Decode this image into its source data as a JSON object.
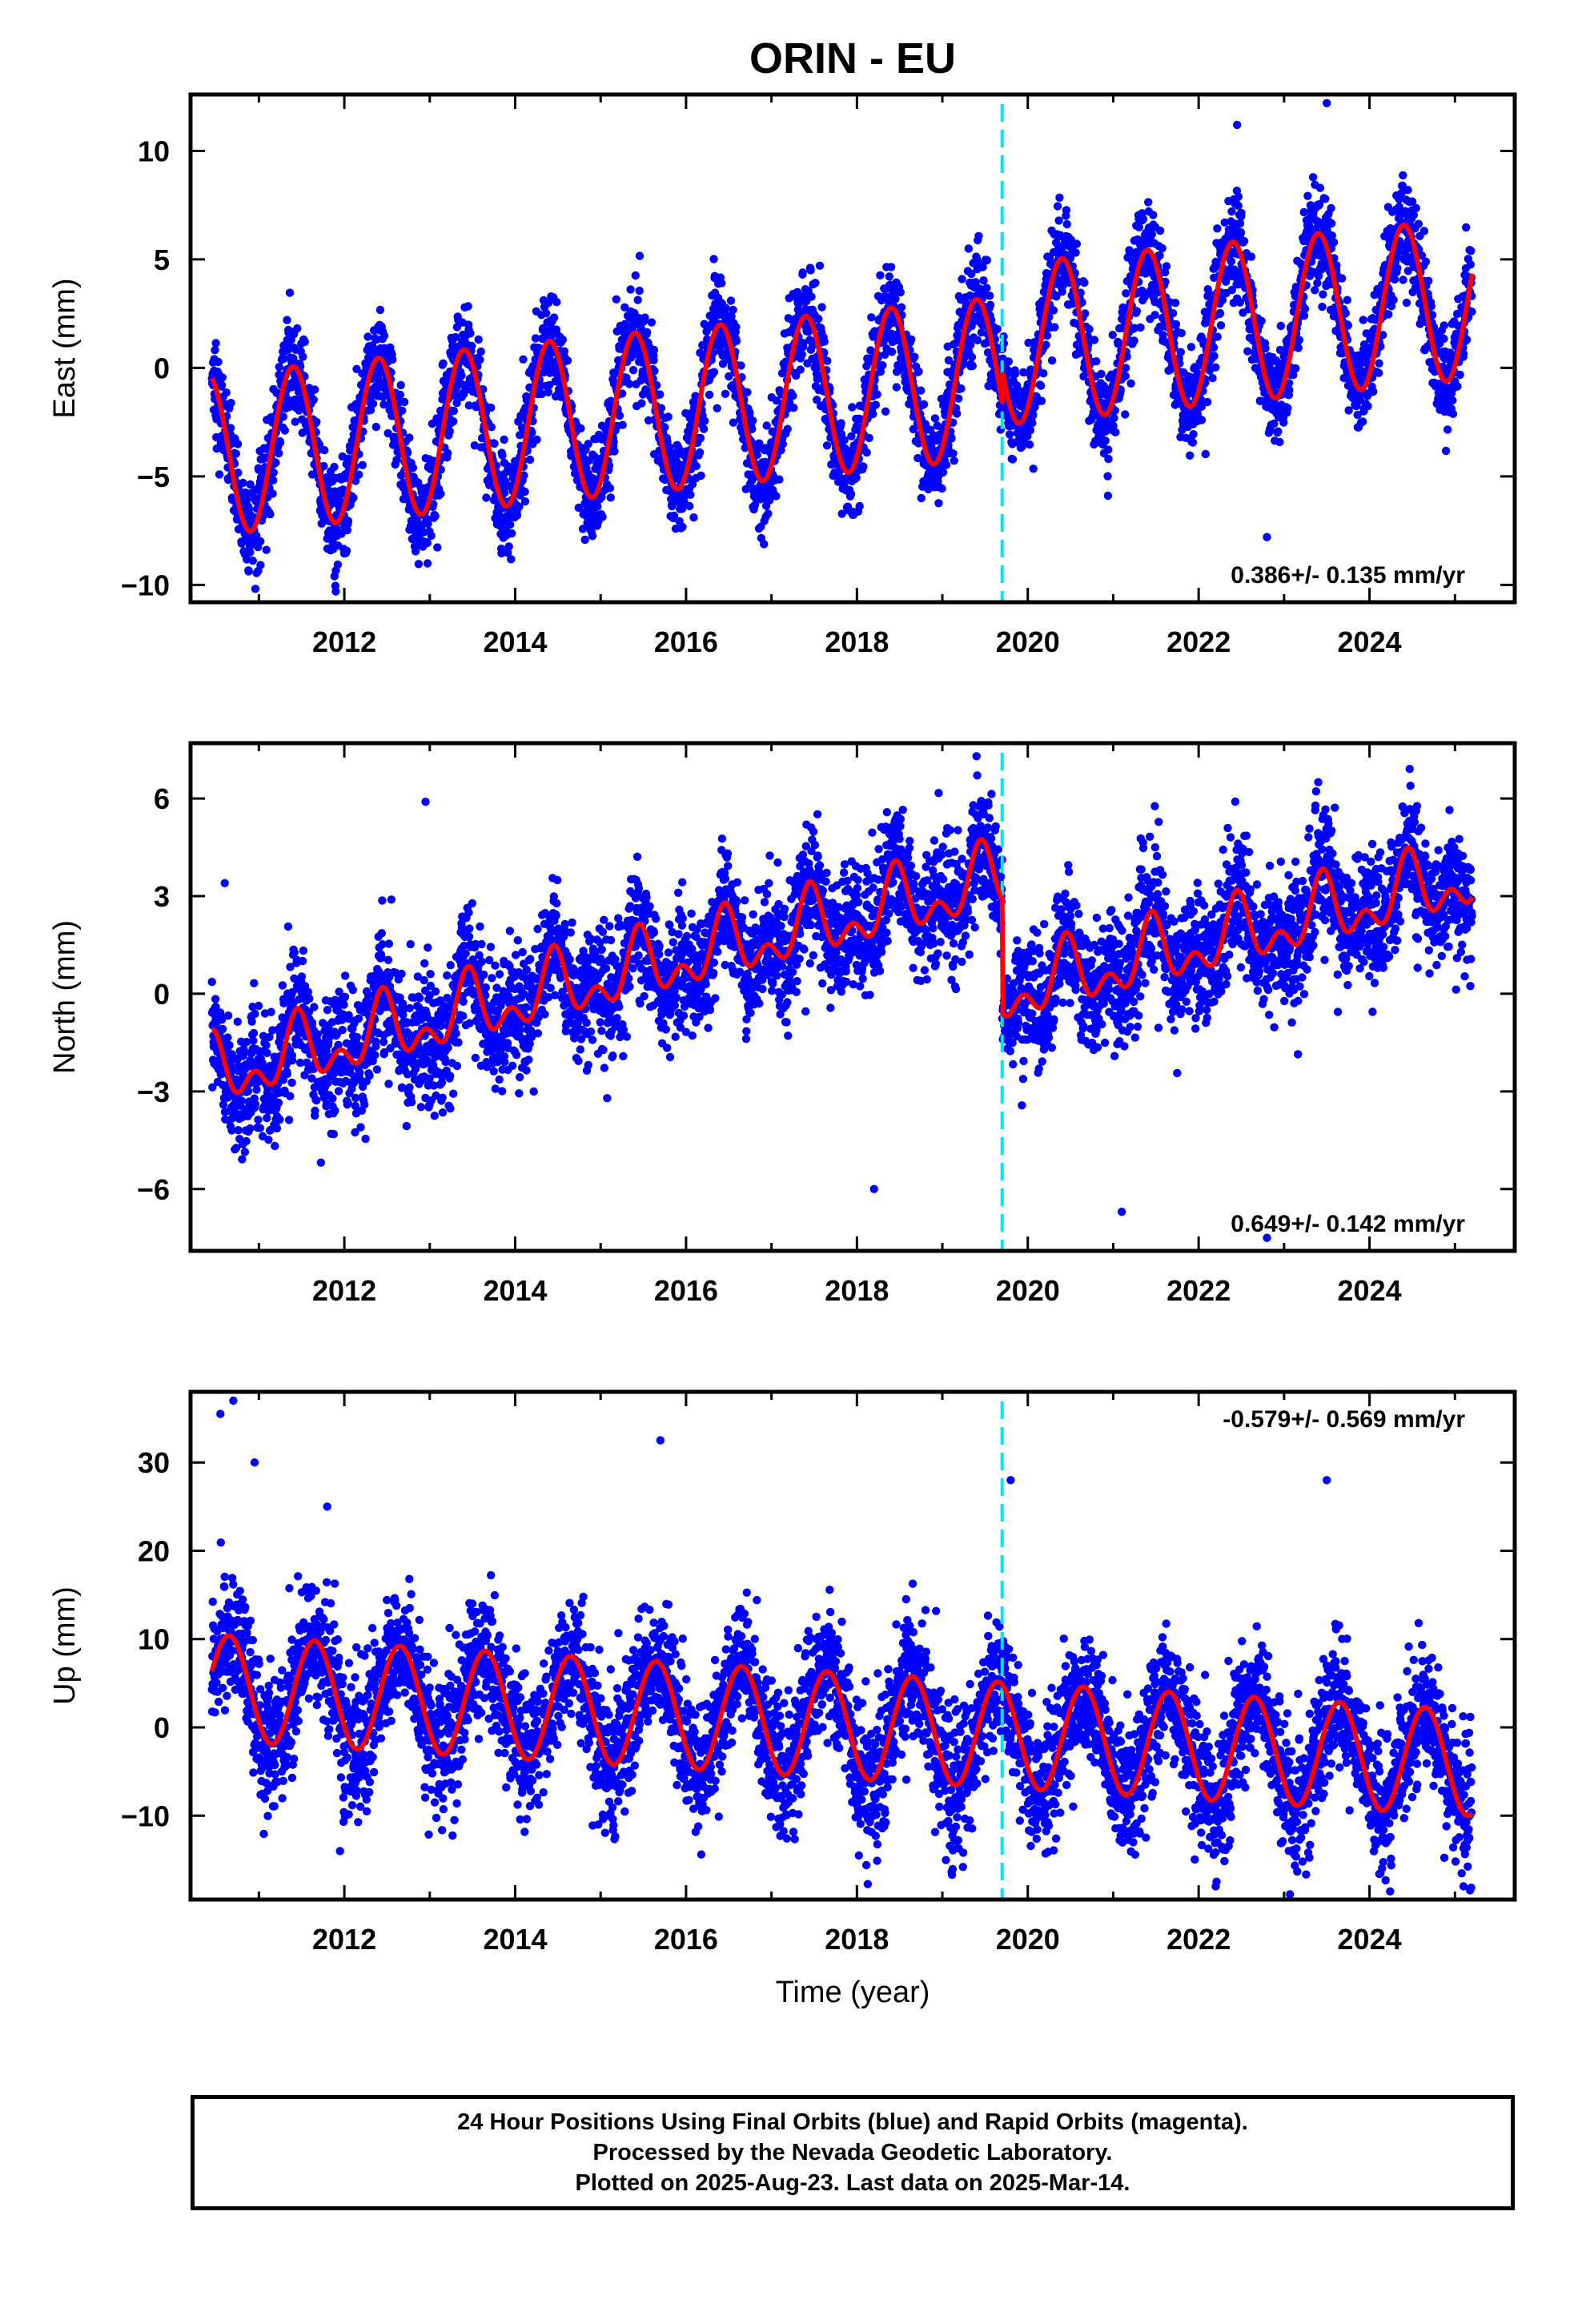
{
  "title": "ORIN - EU",
  "colors": {
    "final_orbit_points": "#0000ff",
    "model_curve": "#ff0000",
    "equipment_change_line": "#00e5ee",
    "frame": "#000000"
  },
  "chart_data": [
    {
      "type": "scatter",
      "name": "east",
      "ylabel": "East (mm)",
      "xlabel": "",
      "xlim": [
        2010.2,
        2025.7
      ],
      "ylim": [
        -10.8,
        12.6
      ],
      "xticks": [
        2012,
        2014,
        2016,
        2018,
        2020,
        2022,
        2024
      ],
      "xtick_labels": [
        "2012",
        "2014",
        "2016",
        "2018",
        "2020",
        "2022",
        "2024"
      ],
      "yticks": [
        10,
        5,
        0,
        -5,
        -10
      ],
      "ytick_labels": [
        "10",
        "5",
        "0",
        "−5",
        "−10"
      ],
      "rate_label": "0.386+/- 0.135 mm/yr",
      "rate_position": "bottom-right",
      "data_start": 2010.45,
      "data_end": 2025.2,
      "event_line_x": 2019.7,
      "model": {
        "trend_mm_per_yr": 0.386,
        "offset": -4.0,
        "offset_after_event": 1.5,
        "annual_amplitude": 3.7,
        "annual_peak": 2010.4,
        "semiannual_amplitude": 0.0,
        "noise_sd": 1.1
      },
      "outliers": [
        {
          "x": 2011.9,
          "y": -10.3
        },
        {
          "x": 2022.8,
          "y": -7.8
        },
        {
          "x": 2023.5,
          "y": 12.2
        },
        {
          "x": 2022.45,
          "y": 11.2
        }
      ]
    },
    {
      "type": "scatter",
      "name": "north",
      "ylabel": "North (mm)",
      "xlabel": "",
      "xlim": [
        2010.2,
        2025.7
      ],
      "ylim": [
        -7.9,
        7.7
      ],
      "xticks": [
        2012,
        2014,
        2016,
        2018,
        2020,
        2022,
        2024
      ],
      "xtick_labels": [
        "2012",
        "2014",
        "2016",
        "2018",
        "2020",
        "2022",
        "2024"
      ],
      "yticks": [
        6,
        3,
        0,
        -3,
        -6
      ],
      "ytick_labels": [
        "6",
        "3",
        "0",
        "−3",
        "−6"
      ],
      "rate_label": "0.649+/- 0.142 mm/yr",
      "rate_position": "bottom-right",
      "data_start": 2010.45,
      "data_end": 2025.2,
      "event_line_x": 2019.7,
      "model": {
        "trend_mm_per_yr": 0.649,
        "offset": -2.5,
        "offset_after_event": -3.5,
        "annual_amplitude": 0.8,
        "annual_peak": 2010.45,
        "semiannual_amplitude": 0.6,
        "noise_sd": 0.9
      },
      "outliers": [
        {
          "x": 2012.95,
          "y": 5.9
        },
        {
          "x": 2010.6,
          "y": 3.4
        },
        {
          "x": 2018.2,
          "y": -6.0
        },
        {
          "x": 2021.1,
          "y": -6.7
        },
        {
          "x": 2022.8,
          "y": -7.5
        },
        {
          "x": 2019.4,
          "y": 7.3
        },
        {
          "x": 2023.4,
          "y": 6.5
        }
      ]
    },
    {
      "type": "scatter",
      "name": "up",
      "ylabel": "Up (mm)",
      "xlabel": "Time (year)",
      "xlim": [
        2010.2,
        2025.7
      ],
      "ylim": [
        -19.5,
        38.0
      ],
      "xticks": [
        2012,
        2014,
        2016,
        2018,
        2020,
        2022,
        2024
      ],
      "xtick_labels": [
        "2012",
        "2014",
        "2016",
        "2018",
        "2020",
        "2022",
        "2024"
      ],
      "yticks": [
        30,
        20,
        10,
        0,
        -10
      ],
      "ytick_labels": [
        "30",
        "20",
        "10",
        "0",
        "−10"
      ],
      "rate_label": "-0.579+/- 0.569 mm/yr",
      "rate_position": "top-right",
      "data_start": 2010.45,
      "data_end": 2025.2,
      "event_line_x": 2019.7,
      "model": {
        "trend_mm_per_yr": -0.579,
        "offset": 4.5,
        "offset_after_event": 0.0,
        "annual_amplitude": 6.0,
        "annual_peak": 2010.65,
        "semiannual_amplitude": 0.0,
        "noise_sd": 3.6
      },
      "outliers": [
        {
          "x": 2010.55,
          "y": 35.5
        },
        {
          "x": 2010.7,
          "y": 37.0
        },
        {
          "x": 2010.95,
          "y": 30.0
        },
        {
          "x": 2011.8,
          "y": 25.0
        },
        {
          "x": 2015.7,
          "y": 32.5
        },
        {
          "x": 2011.95,
          "y": -14.0
        },
        {
          "x": 2019.8,
          "y": 28.0
        },
        {
          "x": 2023.5,
          "y": 28.0
        },
        {
          "x": 2022.2,
          "y": -18.0
        },
        {
          "x": 2025.1,
          "y": -18.0
        }
      ]
    }
  ],
  "footer": {
    "line1": "24 Hour Positions Using Final Orbits (blue) and Rapid Orbits (magenta).",
    "line2": "Processed by the Nevada Geodetic Laboratory.",
    "line3": "Plotted on 2025-Aug-23. Last data on 2025-Mar-14."
  }
}
